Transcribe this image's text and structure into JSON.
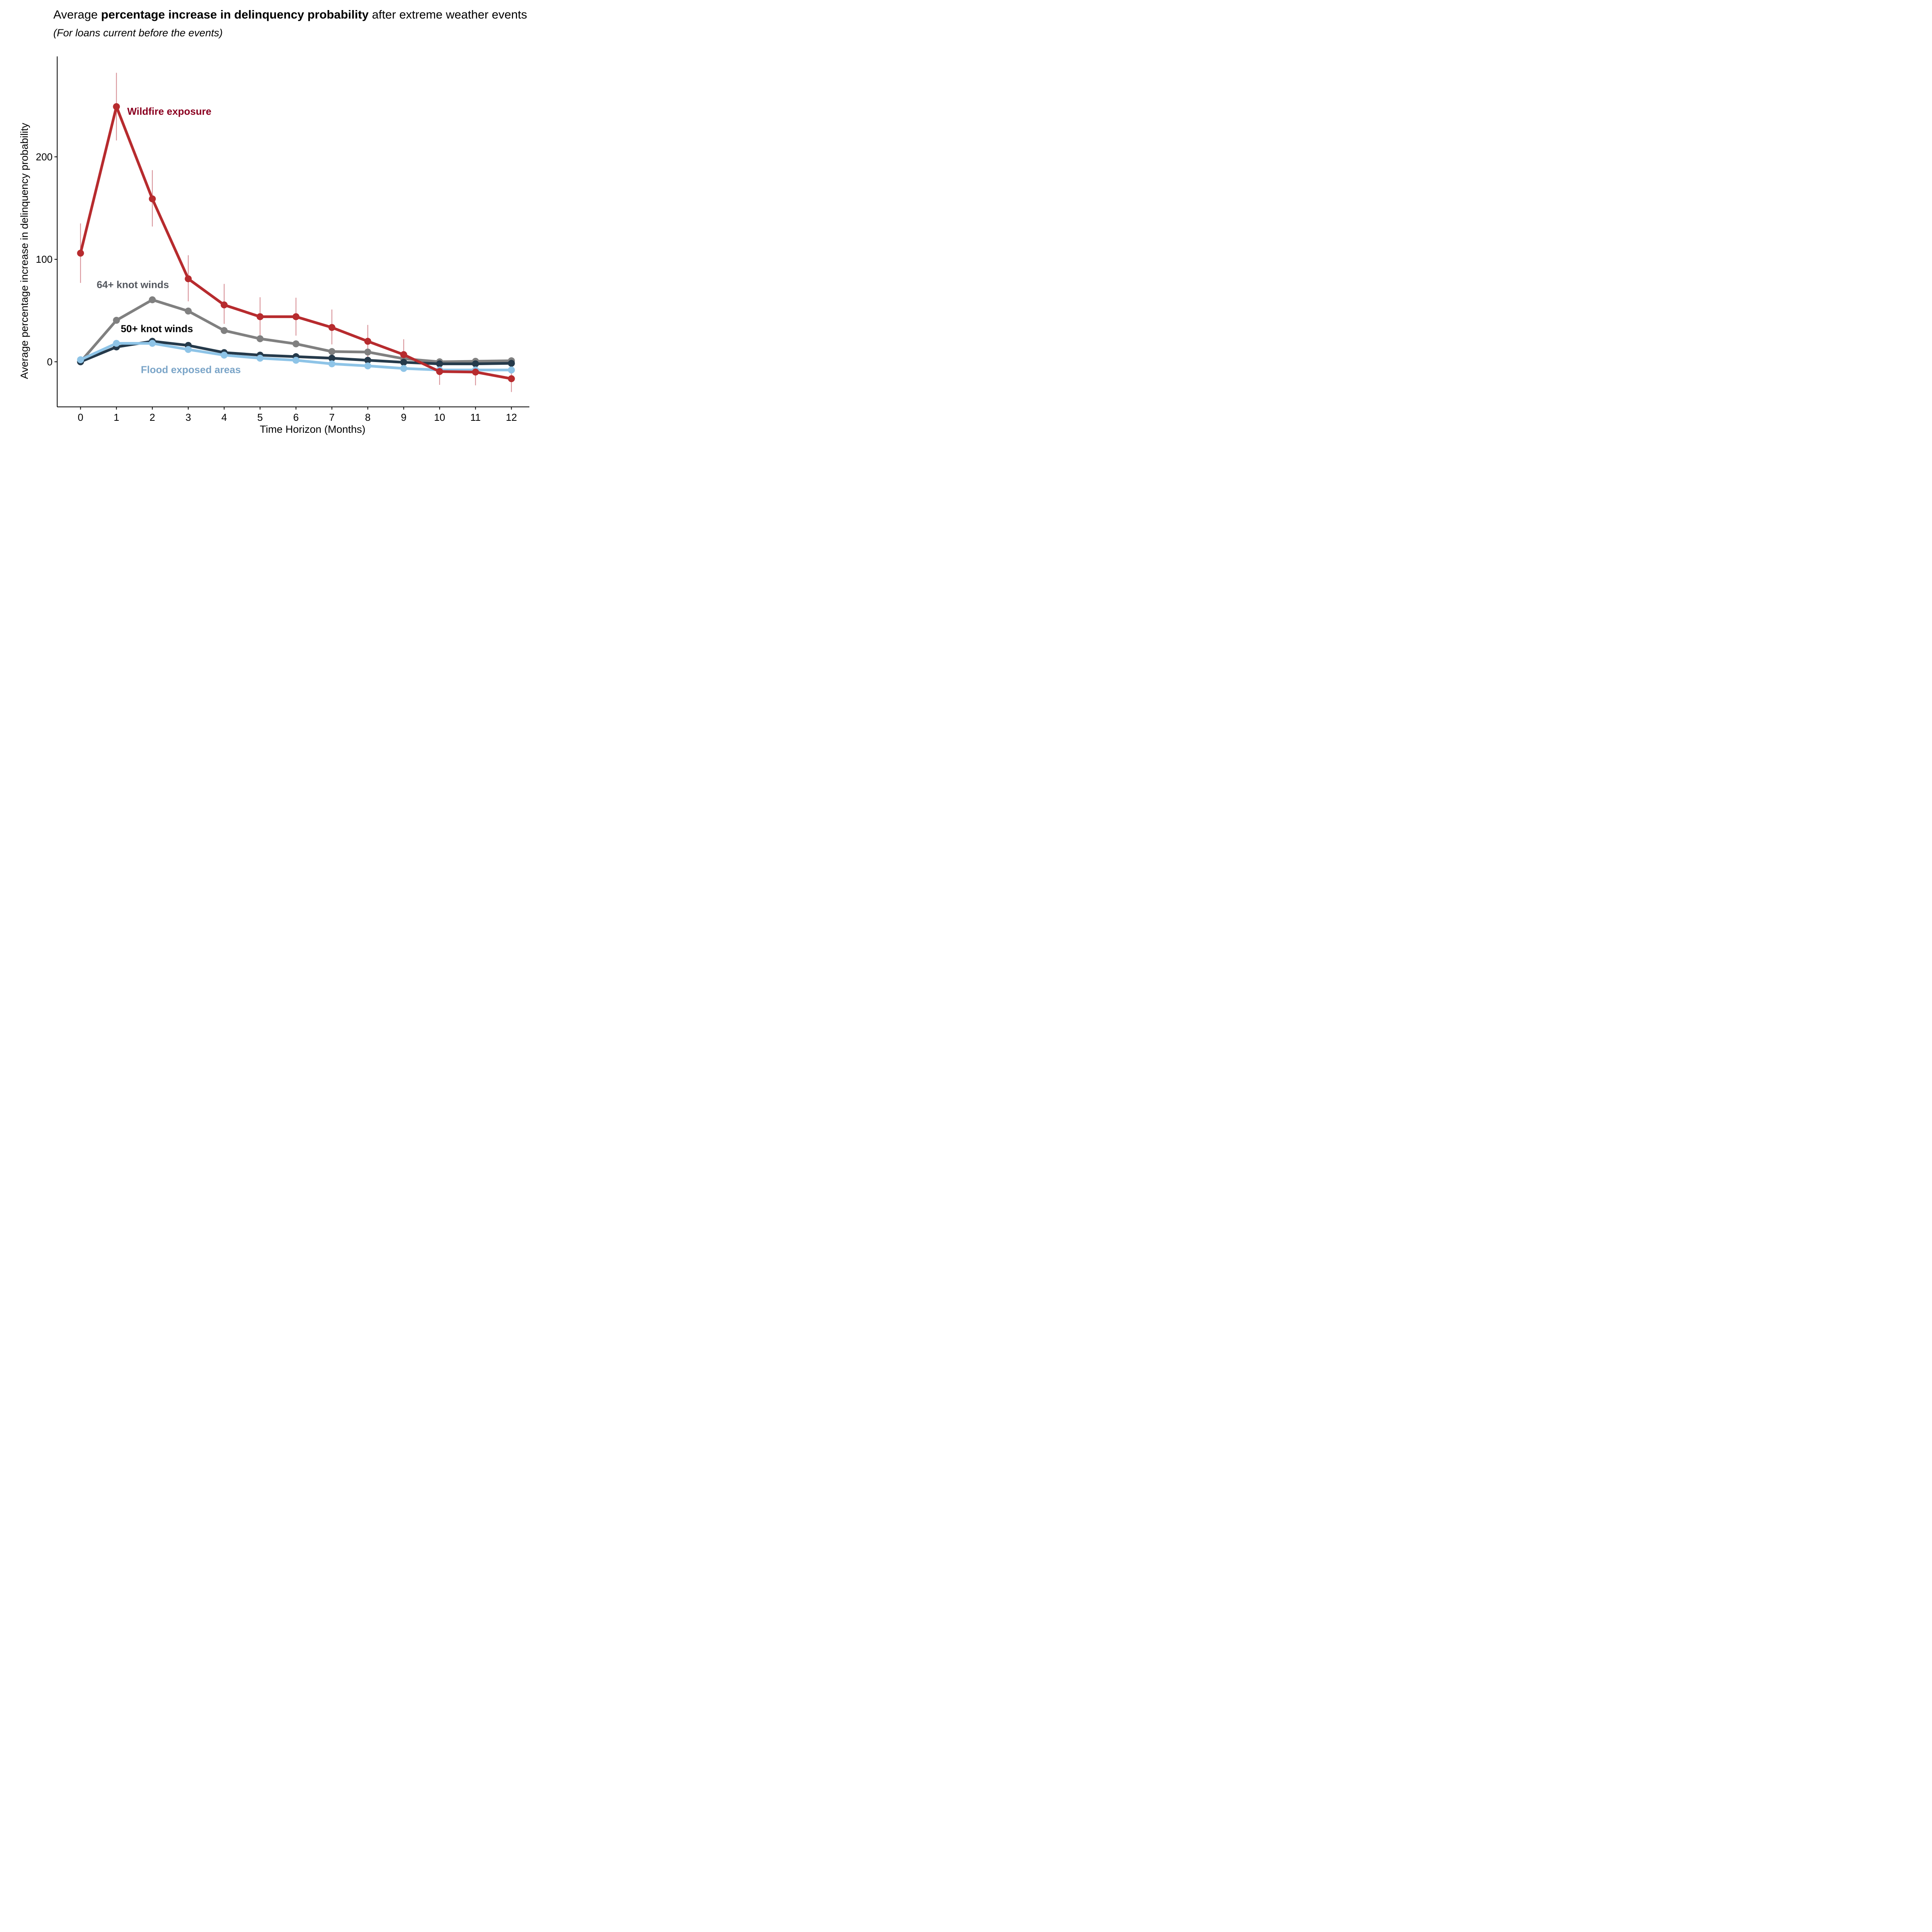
{
  "header": {
    "title_prefix": "Average ",
    "title_bold": "percentage increase in delinquency probability",
    "title_suffix": " after extreme weather events",
    "subtitle": "(For loans current before the events)"
  },
  "chart_data": {
    "type": "line",
    "title": "Average percentage increase in delinquency probability after extreme weather events",
    "subtitle": "(For loans current before the events)",
    "xlabel": "Time Horizon (Months)",
    "ylabel": "Average percentage increase in delinquency probability",
    "x": [
      0,
      1,
      2,
      3,
      4,
      5,
      6,
      7,
      8,
      9,
      10,
      11,
      12
    ],
    "x_ticks": [
      "0",
      "1",
      "2",
      "3",
      "4",
      "5",
      "6",
      "7",
      "8",
      "9",
      "10",
      "11",
      "12"
    ],
    "y_ticks": [
      0,
      100,
      200
    ],
    "y_tick_labels": [
      "0",
      "100",
      "200"
    ],
    "xlim": [
      -0.65,
      12.5
    ],
    "ylim": [
      -44,
      298
    ],
    "grid": false,
    "legend": "none (direct labels on series)",
    "series": [
      {
        "name": "Wildfire exposure",
        "label": "Wildfire exposure",
        "color": "#B72B2E",
        "label_color": "#8B0020",
        "values": [
          106,
          249,
          159,
          81,
          55.5,
          44,
          44,
          33.5,
          20,
          7,
          -9.5,
          -10,
          -16.5
        ],
        "ci_low": [
          77,
          216,
          132,
          59,
          37,
          26,
          25.5,
          17,
          4,
          -7,
          -22.5,
          -23,
          -29.5
        ],
        "ci_high": [
          135,
          282,
          187,
          104,
          76,
          63,
          62.5,
          51,
          36,
          22,
          3,
          2,
          -4
        ],
        "label_anchor": {
          "x": 1.3,
          "y": 241
        }
      },
      {
        "name": "64+ knot winds",
        "label": "64+ knot winds",
        "color": "#808080",
        "label_color": "#54585F",
        "values": [
          0,
          40.5,
          60.5,
          49.5,
          30.5,
          22.5,
          17.5,
          10,
          9.5,
          3,
          0,
          0.5,
          1
        ],
        "label_anchor": {
          "x": 0.45,
          "y": 72
        }
      },
      {
        "name": "50+ knot winds",
        "label": "50+ knot winds",
        "color": "#253A4B",
        "label_color": "#000000",
        "values": [
          0,
          14.5,
          20,
          16,
          9,
          6.5,
          5,
          3.5,
          1.5,
          -0.5,
          -2,
          -2,
          -1.5
        ],
        "label_anchor": {
          "x": 1.12,
          "y": 29
        }
      },
      {
        "name": "Flood exposed areas",
        "label": "Flood exposed areas",
        "color": "#8EC4E7",
        "label_color": "#7BA5C8",
        "values": [
          2,
          18,
          18,
          12,
          6.5,
          3.5,
          1.5,
          -2,
          -4,
          -6.5,
          -8,
          -8,
          -8
        ],
        "label_anchor": {
          "x": 1.68,
          "y": -11
        }
      }
    ]
  }
}
